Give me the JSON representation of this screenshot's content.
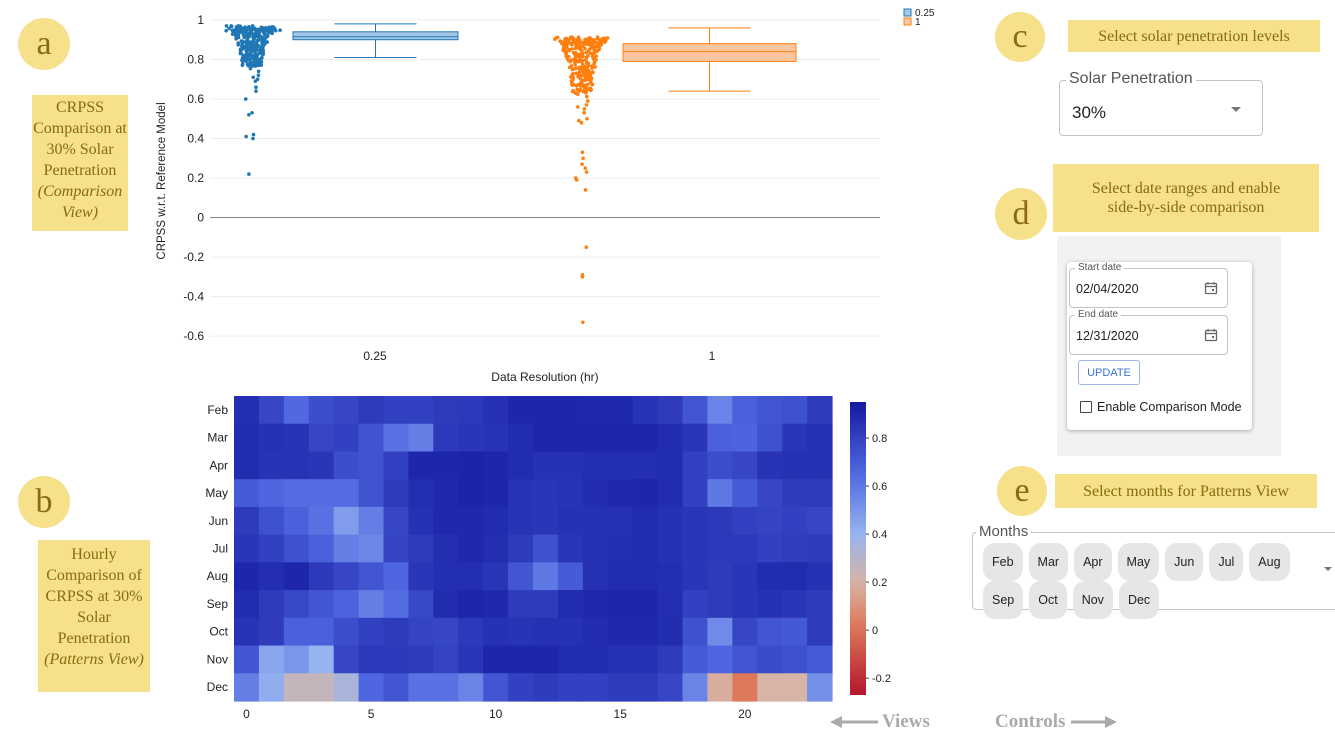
{
  "annotations": {
    "a": {
      "letter": "a",
      "lines": [
        "CRPSS",
        "Comparison at",
        "30% Solar",
        "Penetration",
        "(Comparison",
        "View)"
      ]
    },
    "b": {
      "letter": "b",
      "lines": [
        "Hourly",
        "Comparison of",
        "CRPSS at 30%",
        "Solar",
        "Penetration",
        "(Patterns View)"
      ]
    },
    "c": {
      "letter": "c",
      "text": "Select solar penetration levels"
    },
    "d": {
      "letter": "d",
      "text_line1": "Select date ranges and enable",
      "text_line2": "side-by-side comparison"
    },
    "e": {
      "letter": "e",
      "text": "Select months for Patterns View"
    }
  },
  "footer": {
    "views": "Views",
    "controls": "Controls"
  },
  "controls": {
    "solar_penetration": {
      "label": "Solar Penetration",
      "value": "30%"
    },
    "start_date": {
      "label": "Start date",
      "value": "02/04/2020"
    },
    "end_date": {
      "label": "End date",
      "value": "12/31/2020"
    },
    "update_label": "UPDATE",
    "comparison_label": "Enable Comparison Mode",
    "comparison_checked": false,
    "months": {
      "label": "Months",
      "chips": [
        "Feb",
        "Mar",
        "Apr",
        "May",
        "Jun",
        "Jul",
        "Aug",
        "Sep",
        "Oct",
        "Nov",
        "Dec"
      ]
    }
  },
  "colors": {
    "series_025": "#1f77b4",
    "series_1": "#ff7f0e",
    "box_025_fill": "#a6c8e6",
    "box_1_fill": "#fcc7a0",
    "annotation_bg": "#f6e08a",
    "annotation_text": "#8a6a12"
  },
  "chart_data": [
    {
      "type": "box-strip",
      "xlabel": "Data Resolution (hr)",
      "ylabel": "CRPSS  w.r.t. Reference Model",
      "ylim": [
        -0.65,
        1.02
      ],
      "yticks": [
        1,
        0.8,
        0.6,
        0.4,
        0.2,
        0,
        -0.2,
        -0.4,
        -0.6
      ],
      "ytick_labels": [
        "1",
        "0.8",
        "0.6",
        "0.4",
        "0.2",
        "0",
        "-0.2",
        "-0.4",
        "-0.6"
      ],
      "categories": [
        "0.25",
        "1"
      ],
      "legend": {
        "placement": "top-right",
        "entries": [
          "0.25",
          "1"
        ]
      },
      "series": [
        {
          "name": "0.25",
          "box": {
            "min": 0.81,
            "q1": 0.9,
            "median": 0.915,
            "q3": 0.94,
            "max": 0.98
          },
          "outliers": [
            0.74,
            0.72,
            0.71,
            0.7,
            0.69,
            0.66,
            0.64,
            0.6,
            0.53,
            0.52,
            0.42,
            0.41,
            0.4,
            0.22
          ],
          "bulk": {
            "min": 0.76,
            "max": 0.97,
            "count": 300
          }
        },
        {
          "name": "1",
          "box": {
            "min": 0.64,
            "q1": 0.79,
            "median": 0.84,
            "q3": 0.88,
            "max": 0.96
          },
          "outliers": [
            0.59,
            0.57,
            0.56,
            0.55,
            0.53,
            0.5,
            0.49,
            0.48,
            0.33,
            0.3,
            0.27,
            0.25,
            0.23,
            0.2,
            0.19,
            0.14,
            -0.15,
            -0.29,
            -0.3,
            -0.53
          ],
          "bulk": {
            "min": 0.62,
            "max": 0.94,
            "count": 300
          }
        }
      ]
    },
    {
      "type": "heatmap",
      "rows": [
        "Feb",
        "Mar",
        "Apr",
        "May",
        "Jun",
        "Jul",
        "Aug",
        "Sep",
        "Oct",
        "Nov",
        "Dec"
      ],
      "x_ticks": [
        0,
        5,
        10,
        15,
        20
      ],
      "columns": 24,
      "colorbar": {
        "ticks": [
          0.8,
          0.6,
          0.4,
          0.2,
          0,
          -0.2
        ],
        "tick_labels": [
          "0.8",
          "0.6",
          "0.4",
          "0.2",
          "0",
          "-0.2"
        ],
        "min": -0.27,
        "max": 0.95
      },
      "values": [
        [
          0.87,
          0.78,
          0.65,
          0.75,
          0.78,
          0.82,
          0.8,
          0.8,
          0.82,
          0.83,
          0.86,
          0.9,
          0.9,
          0.9,
          0.89,
          0.89,
          0.85,
          0.82,
          0.72,
          0.56,
          0.68,
          0.72,
          0.74,
          0.82
        ],
        [
          0.88,
          0.86,
          0.85,
          0.78,
          0.8,
          0.73,
          0.62,
          0.58,
          0.83,
          0.84,
          0.85,
          0.88,
          0.9,
          0.9,
          0.9,
          0.9,
          0.9,
          0.88,
          0.84,
          0.68,
          0.67,
          0.74,
          0.84,
          0.86
        ],
        [
          0.88,
          0.85,
          0.85,
          0.84,
          0.75,
          0.73,
          0.8,
          0.9,
          0.9,
          0.91,
          0.9,
          0.88,
          0.86,
          0.86,
          0.87,
          0.87,
          0.87,
          0.88,
          0.8,
          0.75,
          0.78,
          0.85,
          0.86,
          0.86
        ],
        [
          0.7,
          0.66,
          0.64,
          0.64,
          0.64,
          0.73,
          0.82,
          0.87,
          0.89,
          0.91,
          0.9,
          0.85,
          0.84,
          0.85,
          0.88,
          0.89,
          0.9,
          0.88,
          0.8,
          0.6,
          0.7,
          0.78,
          0.82,
          0.82
        ],
        [
          0.82,
          0.74,
          0.68,
          0.62,
          0.48,
          0.58,
          0.78,
          0.86,
          0.89,
          0.89,
          0.88,
          0.85,
          0.84,
          0.86,
          0.86,
          0.86,
          0.88,
          0.86,
          0.84,
          0.83,
          0.8,
          0.79,
          0.8,
          0.78
        ],
        [
          0.84,
          0.8,
          0.74,
          0.68,
          0.58,
          0.55,
          0.79,
          0.82,
          0.87,
          0.89,
          0.87,
          0.82,
          0.74,
          0.84,
          0.86,
          0.87,
          0.88,
          0.86,
          0.84,
          0.83,
          0.83,
          0.8,
          0.81,
          0.82
        ],
        [
          0.9,
          0.87,
          0.9,
          0.83,
          0.78,
          0.72,
          0.66,
          0.84,
          0.87,
          0.87,
          0.84,
          0.72,
          0.6,
          0.7,
          0.86,
          0.88,
          0.88,
          0.87,
          0.84,
          0.82,
          0.84,
          0.88,
          0.88,
          0.86
        ],
        [
          0.88,
          0.82,
          0.77,
          0.72,
          0.67,
          0.58,
          0.64,
          0.77,
          0.88,
          0.9,
          0.89,
          0.82,
          0.82,
          0.88,
          0.89,
          0.9,
          0.9,
          0.87,
          0.8,
          0.82,
          0.84,
          0.86,
          0.84,
          0.82
        ],
        [
          0.85,
          0.82,
          0.68,
          0.68,
          0.75,
          0.8,
          0.82,
          0.79,
          0.78,
          0.83,
          0.86,
          0.85,
          0.86,
          0.86,
          0.88,
          0.89,
          0.89,
          0.88,
          0.74,
          0.54,
          0.78,
          0.72,
          0.71,
          0.82
        ],
        [
          0.72,
          0.45,
          0.5,
          0.4,
          0.78,
          0.83,
          0.83,
          0.82,
          0.79,
          0.84,
          0.9,
          0.9,
          0.9,
          0.88,
          0.88,
          0.86,
          0.86,
          0.82,
          0.7,
          0.66,
          0.72,
          0.76,
          0.74,
          0.7
        ],
        [
          0.58,
          0.42,
          0.26,
          0.26,
          0.34,
          0.66,
          0.72,
          0.62,
          0.62,
          0.56,
          0.72,
          0.8,
          0.82,
          0.8,
          0.8,
          0.82,
          0.82,
          0.78,
          0.56,
          0.18,
          0.02,
          0.2,
          0.2,
          0.52
        ]
      ]
    }
  ]
}
